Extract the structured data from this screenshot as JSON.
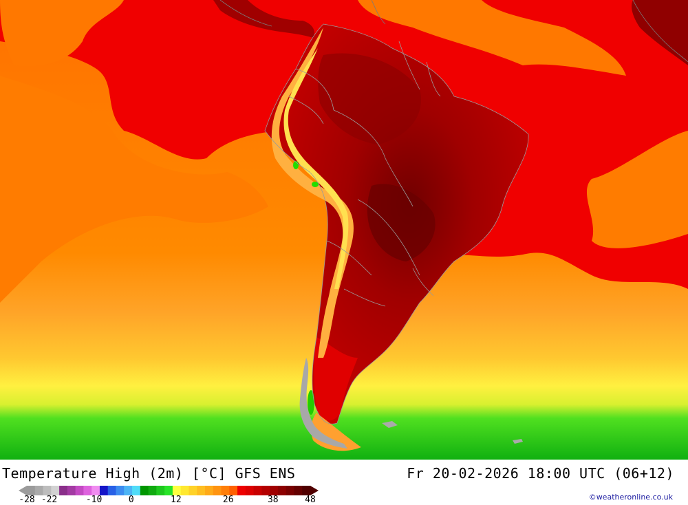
{
  "map": {
    "title": "Temperature High (2m) [°C] GFS ENS",
    "datetime": "Fr 20-02-2026 18:00 UTC (06+12)",
    "credit": "©weatheronline.co.uk",
    "colors": {
      "ocean_warm": "#ff7a00",
      "ocean_hot": "#f20000",
      "land_hot": "#b30000",
      "land_very_hot": "#800000",
      "andes": "#ffa030",
      "cool_yellow": "#ffe030",
      "cold_green": "#22dd00",
      "dark_green": "#0a9a0a",
      "border": "#9a9a9a"
    }
  },
  "legend": {
    "colors": [
      "#9b9b9b",
      "#aaaaaa",
      "#bdbdbd",
      "#d2d2d2",
      "#8a2f8a",
      "#a33aa3",
      "#c34ac3",
      "#de62de",
      "#f08cf0",
      "#1515c8",
      "#2860e6",
      "#3c8cf0",
      "#4cb4f5",
      "#50dcf8",
      "#009600",
      "#10aa10",
      "#1ec81e",
      "#28e428",
      "#ffff40",
      "#ffe830",
      "#ffd228",
      "#ffbe20",
      "#ffaa18",
      "#ff9410",
      "#ff7e08",
      "#ff6000",
      "#ee0000",
      "#dc0000",
      "#c80000",
      "#b40000",
      "#a00000",
      "#8c0000",
      "#780000",
      "#640000",
      "#500000"
    ],
    "ticks": [
      {
        "label": "-28",
        "value": -28
      },
      {
        "label": "-22",
        "value": -22
      },
      {
        "label": "-10",
        "value": -10
      },
      {
        "label": "0",
        "value": 0
      },
      {
        "label": "12",
        "value": 12
      },
      {
        "label": "26",
        "value": 26
      },
      {
        "label": "38",
        "value": 38
      },
      {
        "label": "48",
        "value": 48
      }
    ],
    "min": -28,
    "max": 48
  }
}
